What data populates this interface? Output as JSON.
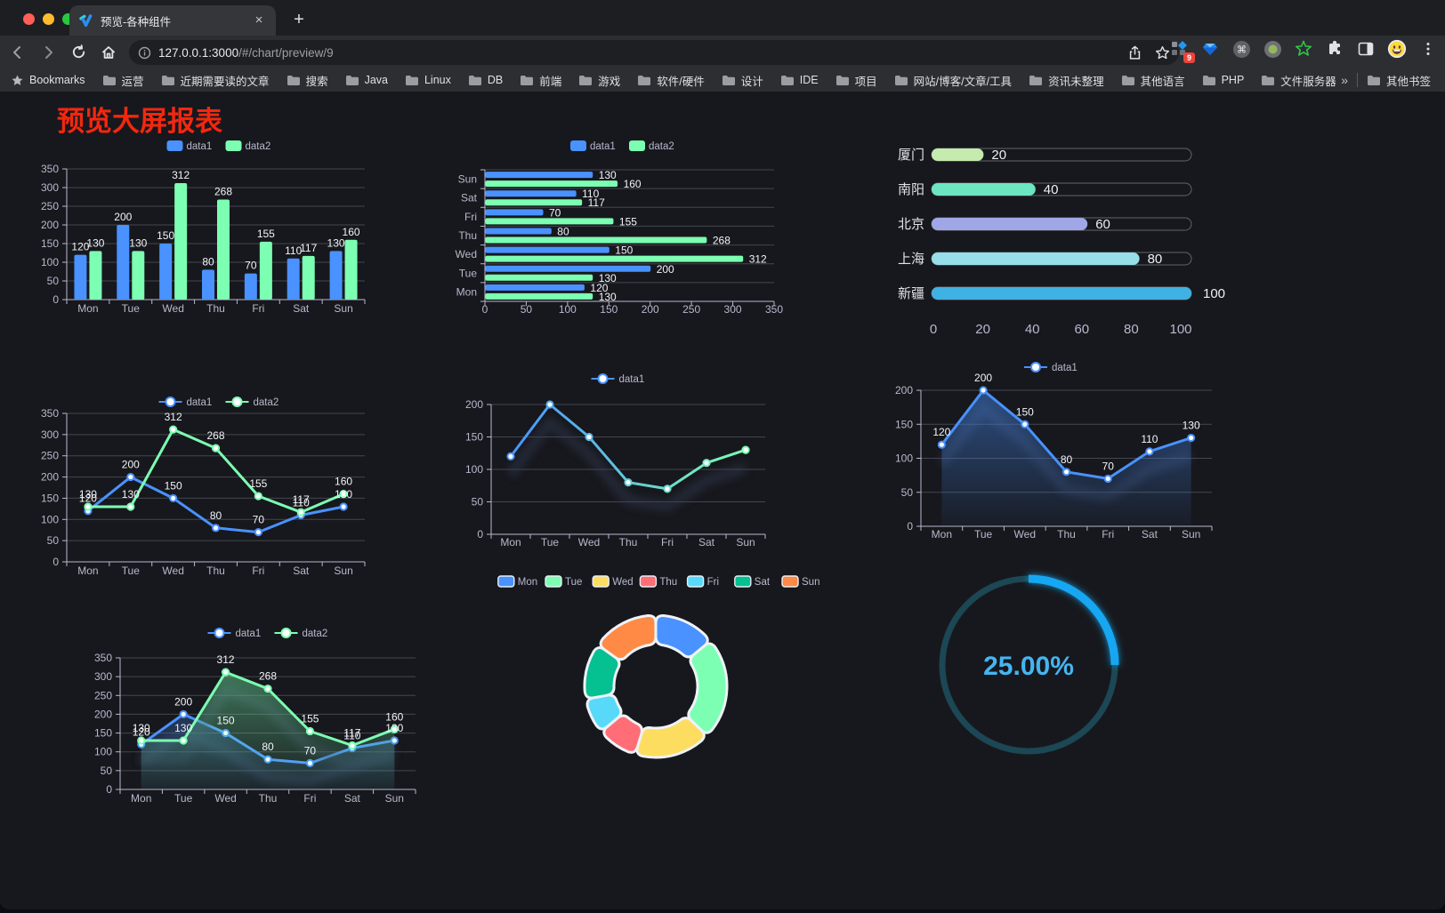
{
  "browser": {
    "traffic_lights": [
      "#ff5f57",
      "#febc2e",
      "#28c840"
    ],
    "tab": {
      "title": "预览-各种组件",
      "close": "×",
      "new_tab": "+"
    },
    "address": {
      "host": "127.0.0.1:3000",
      "path": "/#/chart/preview/9"
    },
    "extensions_badge": "9",
    "bookmarks": {
      "label": "Bookmarks",
      "items": [
        "运营",
        "近期需要读的文章",
        "搜索",
        "Java",
        "Linux",
        "DB",
        "前端",
        "游戏",
        "软件/硬件",
        "设计",
        "IDE",
        "项目",
        "网站/博客/文章/工具",
        "资讯未整理",
        "其他语言",
        "PHP",
        "文件服务器"
      ],
      "overflow": "»",
      "other": "其他书签"
    }
  },
  "page": {
    "title": "预览大屏报表",
    "title_color": "#f4270e"
  },
  "theme": {
    "axis": "#b9b8ce",
    "grid": "#45464f",
    "label": "#f3f4f8",
    "bg": "#17181d"
  },
  "chart_data": [
    {
      "id": "c1",
      "type": "bar",
      "title": "",
      "categories": [
        "Mon",
        "Tue",
        "Wed",
        "Thu",
        "Fri",
        "Sat",
        "Sun"
      ],
      "series": [
        {
          "name": "data1",
          "color": "#4992ff",
          "values": [
            120,
            200,
            150,
            80,
            70,
            110,
            130
          ]
        },
        {
          "name": "data2",
          "color": "#7cffb2",
          "values": [
            130,
            130,
            312,
            268,
            155,
            117,
            160
          ]
        }
      ],
      "ylim": [
        0,
        350
      ],
      "yticks": [
        0,
        50,
        100,
        150,
        200,
        250,
        300,
        350
      ],
      "legend_position": "top",
      "grid": true
    },
    {
      "id": "c2",
      "type": "bar-horizontal",
      "categories_top_to_bottom": [
        "Sun",
        "Sat",
        "Fri",
        "Thu",
        "Wed",
        "Tue",
        "Mon"
      ],
      "series": [
        {
          "name": "data1",
          "color": "#4992ff",
          "values": [
            130,
            110,
            70,
            80,
            150,
            200,
            120
          ]
        },
        {
          "name": "data2",
          "color": "#7cffb2",
          "values": [
            160,
            117,
            155,
            268,
            312,
            130,
            130
          ]
        }
      ],
      "xlim": [
        0,
        350
      ],
      "xticks": [
        0,
        50,
        100,
        150,
        200,
        250,
        300,
        350
      ],
      "legend_position": "top",
      "grid": true
    },
    {
      "id": "c3",
      "type": "progress",
      "max": 100,
      "xticks": [
        0,
        20,
        40,
        60,
        80,
        100
      ],
      "rows": [
        {
          "label": "厦门",
          "value": 20,
          "color": "#c4ebad"
        },
        {
          "label": "南阳",
          "value": 40,
          "color": "#6be6c1"
        },
        {
          "label": "北京",
          "value": 60,
          "color": "#a0a7e6"
        },
        {
          "label": "上海",
          "value": 80,
          "color": "#96dee8"
        },
        {
          "label": "新疆",
          "value": 100,
          "color": "#3fb1e3"
        }
      ]
    },
    {
      "id": "c4",
      "type": "line",
      "categories": [
        "Mon",
        "Tue",
        "Wed",
        "Thu",
        "Fri",
        "Sat",
        "Sun"
      ],
      "series": [
        {
          "name": "data1",
          "color": "#4992ff",
          "values": [
            120,
            200,
            150,
            80,
            70,
            110,
            130
          ]
        },
        {
          "name": "data2",
          "color": "#7cffb2",
          "values": [
            130,
            130,
            312,
            268,
            155,
            117,
            160
          ]
        }
      ],
      "ylim": [
        0,
        350
      ],
      "yticks": [
        0,
        50,
        100,
        150,
        200,
        250,
        300,
        350
      ],
      "labels": true,
      "legend_position": "top",
      "grid": true
    },
    {
      "id": "c5",
      "type": "line",
      "categories": [
        "Mon",
        "Tue",
        "Wed",
        "Thu",
        "Fri",
        "Sat",
        "Sun"
      ],
      "series": [
        {
          "name": "data1",
          "gradient": [
            "#4992ff",
            "#7cffb2"
          ],
          "values": [
            120,
            200,
            150,
            80,
            70,
            110,
            130
          ]
        }
      ],
      "ylim": [
        0,
        200
      ],
      "yticks": [
        0,
        50,
        100,
        150,
        200
      ],
      "labels": false,
      "shadow": true,
      "legend_position": "top",
      "grid": true
    },
    {
      "id": "c6",
      "type": "line",
      "categories": [
        "Mon",
        "Tue",
        "Wed",
        "Thu",
        "Fri",
        "Sat",
        "Sun"
      ],
      "series": [
        {
          "name": "data1",
          "color": "#4992ff",
          "values": [
            120,
            200,
            150,
            80,
            70,
            110,
            130
          ],
          "area": true
        }
      ],
      "ylim": [
        0,
        200
      ],
      "yticks": [
        0,
        50,
        100,
        150,
        200
      ],
      "labels": true,
      "shadow": true,
      "legend_position": "top",
      "grid": true
    },
    {
      "id": "c7",
      "type": "line",
      "categories": [
        "Mon",
        "Tue",
        "Wed",
        "Thu",
        "Fri",
        "Sat",
        "Sun"
      ],
      "series": [
        {
          "name": "data1",
          "color": "#4992ff",
          "values": [
            120,
            200,
            150,
            80,
            70,
            110,
            130
          ],
          "area": true
        },
        {
          "name": "data2",
          "color": "#7cffb2",
          "values": [
            130,
            130,
            312,
            268,
            155,
            117,
            160
          ],
          "area": true
        }
      ],
      "ylim": [
        0,
        350
      ],
      "yticks": [
        0,
        50,
        100,
        150,
        200,
        250,
        300,
        350
      ],
      "labels": true,
      "shadow": true,
      "legend_position": "top",
      "grid": true
    },
    {
      "id": "c8",
      "type": "pie",
      "donut": true,
      "legend_position": "top",
      "items": [
        {
          "label": "Mon",
          "value": 120,
          "color": "#4992ff"
        },
        {
          "label": "Tue",
          "value": 200,
          "color": "#7cffb2"
        },
        {
          "label": "Wed",
          "value": 150,
          "color": "#fddd60"
        },
        {
          "label": "Thu",
          "value": 80,
          "color": "#ff6e76"
        },
        {
          "label": "Fri",
          "value": 70,
          "color": "#58d9f9"
        },
        {
          "label": "Sat",
          "value": 110,
          "color": "#05c091"
        },
        {
          "label": "Sun",
          "value": 130,
          "color": "#ff8a45"
        }
      ]
    },
    {
      "id": "c9",
      "type": "gauge",
      "text": "25.00%",
      "percent": 25,
      "color": "#18a7f2",
      "track": "#1c4754",
      "text_color": "#45b5f2"
    }
  ]
}
